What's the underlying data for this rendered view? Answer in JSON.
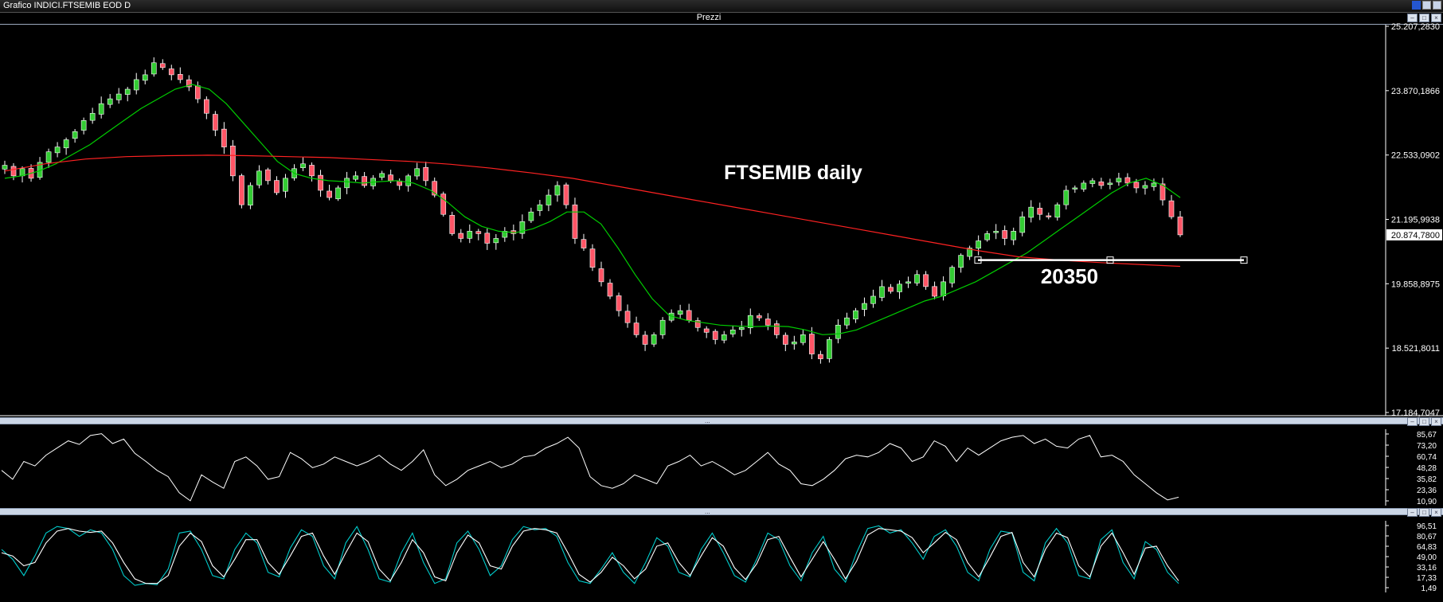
{
  "window": {
    "title": "Grafico INDICI.FTSEMIB EOD D"
  },
  "panels": {
    "price_header": "Prezzi",
    "sep1_grip": "...",
    "sep2_grip": "..."
  },
  "annotations": {
    "title_text": "FTSEMIB daily",
    "level_label": "20350"
  },
  "colors": {
    "background": "#000000",
    "bull_candle": "#33cc33",
    "bear_candle": "#ff5566",
    "ma_short": "#00cc00",
    "ma_long": "#ff2222",
    "level_line": "#ffffff",
    "stoch_k": "#00cccc",
    "stoch_d": "#ffffff"
  },
  "chart_data": [
    {
      "type": "candlestick",
      "title": "FTSEMIB daily",
      "y_ticks": [
        "25.207,2830",
        "23.870,1866",
        "22.533,0902",
        "21.195,9938",
        "19.858,8975",
        "18.521,8011",
        "17.184,7047"
      ],
      "ylim": [
        17184.7047,
        25207.283
      ],
      "last_price_label": "20.874,7800",
      "last_price": 20874.78,
      "horizontal_level": 20350,
      "closes": [
        22320,
        22100,
        22250,
        22050,
        22380,
        22600,
        22700,
        22850,
        23020,
        23250,
        23400,
        23600,
        23700,
        23800,
        23900,
        24100,
        24200,
        24450,
        24350,
        24200,
        24100,
        23950,
        23700,
        23400,
        23050,
        22700,
        22100,
        21500,
        21900,
        22200,
        22000,
        21750,
        22050,
        22250,
        22350,
        22100,
        21800,
        21650,
        21850,
        22050,
        22100,
        21900,
        22050,
        22150,
        22000,
        21900,
        22100,
        22250,
        22000,
        21700,
        21300,
        20900,
        20800,
        20950,
        20900,
        20700,
        20800,
        20950,
        20900,
        21150,
        21350,
        21500,
        21700,
        21900,
        21500,
        20800,
        20600,
        20200,
        19900,
        19600,
        19300,
        19050,
        18800,
        18600,
        18800,
        19100,
        19250,
        19300,
        19100,
        18950,
        18850,
        18700,
        18800,
        18900,
        18950,
        19200,
        19150,
        19000,
        18800,
        18600,
        18650,
        18800,
        18400,
        18300,
        18700,
        19000,
        19150,
        19300,
        19450,
        19600,
        19800,
        19700,
        19850,
        19900,
        20050,
        19800,
        19600,
        19900,
        20200,
        20450,
        20600,
        20750,
        20900,
        20950,
        20800,
        20950,
        21250,
        21450,
        21300,
        21250,
        21500,
        21800,
        21850,
        21950,
        22000,
        21900,
        21950,
        22050,
        21950,
        21850,
        21900,
        21950,
        21600,
        21250,
        20874.78
      ],
      "ma_short": {
        "description": "short moving average",
        "values": [
          22050,
          22100,
          22200,
          22350,
          22550,
          22750,
          23000,
          23250,
          23500,
          23700,
          23900,
          24000,
          23900,
          23600,
          23200,
          22800,
          22400,
          22150,
          22050,
          22000,
          21980,
          21950,
          21980,
          22000,
          21950,
          21800,
          21550,
          21250,
          21050,
          20950,
          20920,
          21000,
          21150,
          21350,
          21350,
          21100,
          20600,
          20050,
          19550,
          19200,
          19100,
          19050,
          19000,
          18980,
          18970,
          18980,
          18970,
          18900,
          18800,
          18820,
          18900,
          19050,
          19200,
          19350,
          19500,
          19600,
          19750,
          19900,
          20100,
          20300,
          20500,
          20750,
          21000,
          21250,
          21500,
          21750,
          21950,
          22050,
          21900,
          21650
        ]
      },
      "ma_long": {
        "description": "long moving average",
        "values": [
          22200,
          22350,
          22450,
          22500,
          22520,
          22530,
          22520,
          22500,
          22480,
          22440,
          22400,
          22340,
          22260,
          22160,
          22050,
          21900,
          21750,
          21600,
          21450,
          21300,
          21150,
          21000,
          20850,
          20700,
          20550,
          20420,
          20350,
          20300,
          20260,
          20220
        ]
      }
    },
    {
      "type": "line",
      "description": "oscillator panel 1",
      "y_ticks": [
        "85,67",
        "73,20",
        "60,74",
        "48,28",
        "35,82",
        "23,36",
        "10,90"
      ],
      "ylim": [
        10.9,
        85.67
      ],
      "values": [
        45,
        35,
        55,
        50,
        62,
        70,
        78,
        74,
        84,
        86,
        75,
        80,
        64,
        55,
        45,
        38,
        20,
        11,
        40,
        32,
        25,
        55,
        60,
        50,
        35,
        38,
        65,
        58,
        48,
        52,
        60,
        55,
        50,
        55,
        62,
        52,
        45,
        55,
        68,
        40,
        28,
        35,
        45,
        50,
        55,
        48,
        52,
        60,
        62,
        70,
        75,
        82,
        70,
        38,
        28,
        25,
        30,
        40,
        35,
        30,
        50,
        55,
        62,
        50,
        55,
        48,
        40,
        45,
        55,
        65,
        52,
        45,
        30,
        28,
        35,
        45,
        58,
        62,
        60,
        65,
        75,
        70,
        55,
        60,
        78,
        72,
        55,
        70,
        62,
        70,
        78,
        82,
        84,
        75,
        80,
        72,
        70,
        80,
        84,
        60,
        62,
        55,
        40,
        30,
        20,
        12,
        15
      ]
    },
    {
      "type": "line",
      "description": "oscillator panel 2 (two lines)",
      "y_ticks": [
        "96,51",
        "80,67",
        "64,83",
        "49,00",
        "33,16",
        "17,33",
        "1,49"
      ],
      "ylim": [
        1.49,
        96.51
      ],
      "series": [
        {
          "values": [
            60,
            45,
            20,
            50,
            85,
            95,
            92,
            80,
            90,
            85,
            60,
            20,
            5,
            8,
            6,
            30,
            85,
            88,
            60,
            20,
            15,
            60,
            85,
            70,
            25,
            18,
            62,
            90,
            80,
            35,
            15,
            70,
            95,
            60,
            15,
            10,
            55,
            85,
            40,
            8,
            15,
            70,
            88,
            60,
            20,
            35,
            75,
            95,
            90,
            92,
            80,
            40,
            12,
            8,
            30,
            55,
            25,
            8,
            40,
            78,
            65,
            25,
            18,
            60,
            85,
            55,
            20,
            10,
            45,
            85,
            75,
            35,
            12,
            55,
            80,
            30,
            10,
            55,
            92,
            96,
            85,
            90,
            70,
            45,
            80,
            90,
            65,
            25,
            12,
            60,
            88,
            85,
            25,
            12,
            70,
            92,
            70,
            20,
            15,
            75,
            90,
            40,
            15,
            72,
            60,
            25,
            8
          ]
        },
        {
          "values": [
            55,
            50,
            35,
            40,
            70,
            88,
            92,
            88,
            86,
            88,
            70,
            40,
            15,
            8,
            8,
            20,
            65,
            85,
            72,
            35,
            18,
            45,
            75,
            75,
            40,
            22,
            50,
            80,
            85,
            50,
            22,
            55,
            85,
            72,
            30,
            12,
            40,
            75,
            55,
            18,
            12,
            55,
            82,
            70,
            35,
            30,
            65,
            88,
            92,
            90,
            85,
            55,
            22,
            10,
            25,
            48,
            35,
            15,
            30,
            65,
            70,
            40,
            20,
            50,
            78,
            65,
            32,
            14,
            38,
            75,
            80,
            48,
            18,
            45,
            72,
            45,
            15,
            42,
            82,
            92,
            90,
            88,
            78,
            55,
            70,
            86,
            75,
            40,
            18,
            48,
            80,
            86,
            40,
            18,
            60,
            85,
            78,
            35,
            18,
            65,
            85,
            55,
            22,
            62,
            65,
            35,
            12
          ]
        }
      ]
    }
  ]
}
